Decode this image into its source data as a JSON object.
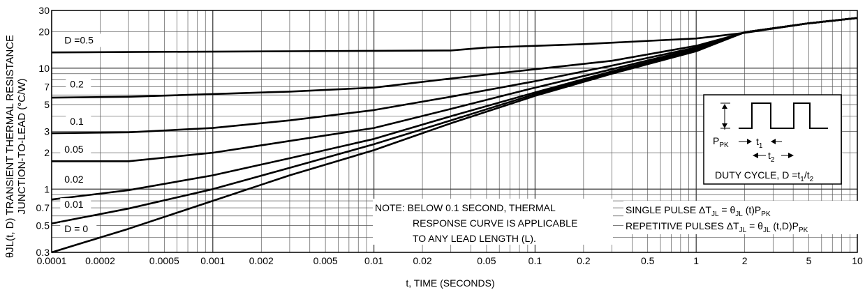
{
  "chart_data": {
    "type": "line",
    "xlabel": "t, TIME (SECONDS)",
    "ylabel_line1": "θJL(t, D) TRANSIENT THERMAL RESISTANCE",
    "ylabel_line2": "JUNCTION-TO-LEAD (°C/W)",
    "x_scale": "log",
    "y_scale": "log",
    "xlim": [
      0.0001,
      10
    ],
    "ylim": [
      0.3,
      30
    ],
    "grid": true,
    "x_ticks": [
      {
        "v": 0.0001,
        "label": "0.0001"
      },
      {
        "v": 0.0002,
        "label": "0.0002"
      },
      {
        "v": 0.0005,
        "label": "0.0005"
      },
      {
        "v": 0.001,
        "label": "0.001"
      },
      {
        "v": 0.002,
        "label": "0.002"
      },
      {
        "v": 0.005,
        "label": "0.005"
      },
      {
        "v": 0.01,
        "label": "0.01"
      },
      {
        "v": 0.02,
        "label": "0.02"
      },
      {
        "v": 0.05,
        "label": "0.05"
      },
      {
        "v": 0.1,
        "label": "0.1"
      },
      {
        "v": 0.2,
        "label": "0.2"
      },
      {
        "v": 0.5,
        "label": "0.5"
      },
      {
        "v": 1,
        "label": "1"
      },
      {
        "v": 2,
        "label": "2"
      },
      {
        "v": 5,
        "label": "5"
      },
      {
        "v": 10,
        "label": "10"
      }
    ],
    "y_ticks": [
      {
        "v": 0.3,
        "label": "0.3"
      },
      {
        "v": 0.5,
        "label": "0.5"
      },
      {
        "v": 0.7,
        "label": "0.7"
      },
      {
        "v": 1,
        "label": "1"
      },
      {
        "v": 2,
        "label": "2"
      },
      {
        "v": 3,
        "label": "3"
      },
      {
        "v": 5,
        "label": "5"
      },
      {
        "v": 7,
        "label": "7"
      },
      {
        "v": 10,
        "label": "10"
      },
      {
        "v": 20,
        "label": "20"
      },
      {
        "v": 30,
        "label": "30"
      }
    ],
    "series": [
      {
        "name": "D =0.5",
        "points": [
          [
            0.0001,
            13.5
          ],
          [
            0.0003,
            13.6
          ],
          [
            0.003,
            13.8
          ],
          [
            0.03,
            14
          ],
          [
            0.05,
            14.8
          ],
          [
            0.2,
            15.8
          ],
          [
            1,
            17.6
          ],
          [
            2,
            19.6
          ],
          [
            5,
            23.5
          ],
          [
            10,
            26
          ]
        ]
      },
      {
        "name": "0.2",
        "points": [
          [
            0.0001,
            5.7
          ],
          [
            0.0003,
            5.8
          ],
          [
            0.003,
            6.4
          ],
          [
            0.01,
            6.9
          ],
          [
            0.03,
            8.2
          ],
          [
            0.1,
            9.8
          ],
          [
            0.3,
            11.5
          ],
          [
            1,
            15.3
          ],
          [
            2,
            19.7
          ],
          [
            5,
            23.5
          ],
          [
            10,
            26
          ]
        ]
      },
      {
        "name": "0.1",
        "points": [
          [
            0.0001,
            2.9
          ],
          [
            0.0003,
            2.95
          ],
          [
            0.001,
            3.2
          ],
          [
            0.003,
            3.7
          ],
          [
            0.01,
            4.5
          ],
          [
            0.03,
            5.8
          ],
          [
            0.1,
            7.8
          ],
          [
            0.3,
            10.5
          ],
          [
            1,
            14.8
          ],
          [
            2,
            19.8
          ],
          [
            5,
            23.5
          ],
          [
            10,
            26
          ]
        ]
      },
      {
        "name": "0.05",
        "points": [
          [
            0.0001,
            1.7
          ],
          [
            0.0003,
            1.7
          ],
          [
            0.001,
            2.0
          ],
          [
            0.003,
            2.5
          ],
          [
            0.01,
            3.2
          ],
          [
            0.03,
            4.6
          ],
          [
            0.1,
            6.9
          ],
          [
            0.3,
            9.8
          ],
          [
            1,
            14.5
          ],
          [
            2,
            19.8
          ],
          [
            5,
            23.5
          ],
          [
            10,
            26
          ]
        ]
      },
      {
        "name": "0.02",
        "points": [
          [
            0.0001,
            0.82
          ],
          [
            0.0003,
            0.98
          ],
          [
            0.001,
            1.3
          ],
          [
            0.003,
            1.8
          ],
          [
            0.01,
            2.6
          ],
          [
            0.03,
            4.0
          ],
          [
            0.1,
            6.3
          ],
          [
            0.3,
            9.4
          ],
          [
            1,
            14.2
          ],
          [
            2,
            19.8
          ],
          [
            5,
            23.5
          ],
          [
            10,
            26
          ]
        ]
      },
      {
        "name": "0.01",
        "points": [
          [
            0.0001,
            0.52
          ],
          [
            0.0003,
            0.69
          ],
          [
            0.001,
            1.0
          ],
          [
            0.003,
            1.5
          ],
          [
            0.01,
            2.35
          ],
          [
            0.03,
            3.7
          ],
          [
            0.1,
            6.1
          ],
          [
            0.3,
            9.2
          ],
          [
            1,
            14.0
          ],
          [
            2,
            19.8
          ],
          [
            5,
            23.5
          ],
          [
            10,
            26
          ]
        ]
      },
      {
        "name": "D = 0",
        "points": [
          [
            0.0001,
            0.3
          ],
          [
            0.0003,
            0.47
          ],
          [
            0.001,
            0.8
          ],
          [
            0.003,
            1.3
          ],
          [
            0.01,
            2.1
          ],
          [
            0.03,
            3.5
          ],
          [
            0.1,
            5.9
          ],
          [
            0.3,
            9.0
          ],
          [
            1,
            13.8
          ],
          [
            2,
            19.8
          ],
          [
            5,
            23.5
          ],
          [
            10,
            26
          ]
        ]
      }
    ],
    "series_labels": [
      {
        "text": "D =0.5",
        "x": 0.00012,
        "y": 16.0
      },
      {
        "text": "0.2",
        "x": 0.00013,
        "y": 6.9
      },
      {
        "text": "0.1",
        "x": 0.00013,
        "y": 3.4
      },
      {
        "text": "0.05",
        "x": 0.00012,
        "y": 2.0
      },
      {
        "text": "0.02",
        "x": 0.00012,
        "y": 1.13
      },
      {
        "text": "0.01",
        "x": 0.00012,
        "y": 0.7
      },
      {
        "text": "D = 0",
        "x": 0.00012,
        "y": 0.44
      }
    ],
    "note": {
      "line1": "NOTE: BELOW 0.1 SECOND, THERMAL",
      "line2": "RESPONSE CURVE IS APPLICABLE",
      "line3": "TO ANY LEAD LENGTH (L)."
    },
    "formula": {
      "single_prefix": "SINGLE PULSE ΔT",
      "single_mid": " = θ",
      "single_mid2": " (t)P",
      "repetitive_prefix": "REPETITIVE PULSES ΔT",
      "repetitive_mid": " = θ",
      "repetitive_mid2": " (t,D)P",
      "sub_jl": "JL",
      "sub_pk": "PK"
    },
    "inset": {
      "ppk_label": "P",
      "ppk_sub": "PK",
      "t1_label": "t",
      "t1_sub": "1",
      "t2_label": "t",
      "t2_sub": "2",
      "duty_prefix": "DUTY CYCLE, D =t",
      "duty_sub1": "1",
      "duty_mid": "/t",
      "duty_sub2": "2"
    }
  }
}
